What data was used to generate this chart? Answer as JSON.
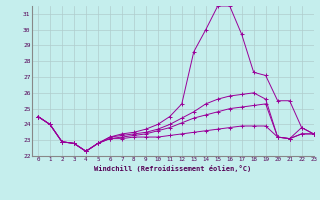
{
  "xlabel": "Windchill (Refroidissement éolien,°C)",
  "xlim": [
    -0.5,
    23
  ],
  "ylim": [
    22,
    31.5
  ],
  "yticks": [
    22,
    23,
    24,
    25,
    26,
    27,
    28,
    29,
    30,
    31
  ],
  "xticks": [
    0,
    1,
    2,
    3,
    4,
    5,
    6,
    7,
    8,
    9,
    10,
    11,
    12,
    13,
    14,
    15,
    16,
    17,
    18,
    19,
    20,
    21,
    22,
    23
  ],
  "bg_color": "#c5eeed",
  "grid_color": "#b0cccc",
  "line_color": "#990099",
  "series": [
    [
      24.5,
      24.0,
      22.9,
      22.8,
      22.3,
      22.8,
      23.1,
      23.1,
      23.2,
      23.2,
      23.2,
      23.3,
      23.4,
      23.5,
      23.6,
      23.7,
      23.8,
      23.9,
      23.9,
      23.9,
      23.2,
      23.1,
      23.4,
      23.4
    ],
    [
      24.5,
      24.0,
      22.9,
      22.8,
      22.3,
      22.8,
      23.1,
      23.2,
      23.3,
      23.4,
      23.6,
      23.8,
      24.1,
      24.4,
      24.6,
      24.8,
      25.0,
      25.1,
      25.2,
      25.3,
      23.2,
      23.1,
      23.4,
      23.4
    ],
    [
      24.5,
      24.0,
      22.9,
      22.8,
      22.3,
      22.8,
      23.2,
      23.3,
      23.4,
      23.5,
      23.7,
      24.0,
      24.4,
      24.8,
      25.3,
      25.6,
      25.8,
      25.9,
      26.0,
      25.6,
      23.2,
      23.1,
      23.8,
      23.4
    ],
    [
      24.5,
      24.0,
      22.9,
      22.8,
      22.3,
      22.8,
      23.2,
      23.4,
      23.5,
      23.7,
      24.0,
      24.5,
      25.3,
      28.6,
      30.0,
      31.5,
      31.5,
      29.7,
      27.3,
      27.1,
      25.5,
      25.5,
      23.8,
      23.4
    ]
  ]
}
